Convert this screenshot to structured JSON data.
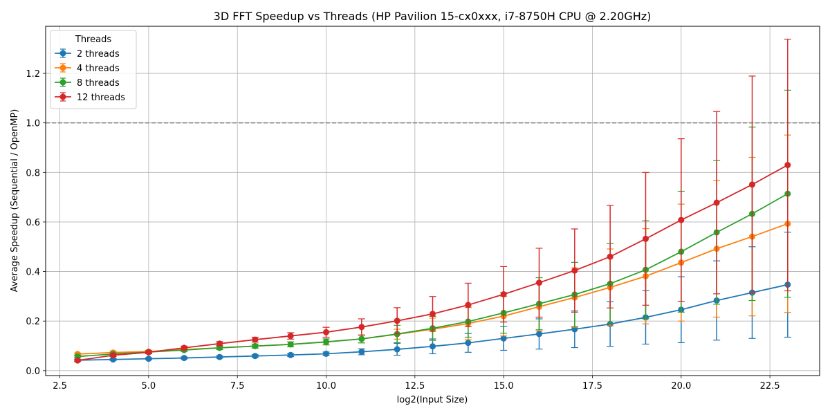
{
  "chart_data": {
    "type": "line",
    "title": "3D FFT Speedup vs Threads (HP Pavilion 15-cx0xxx, i7-8750H CPU @ 2.20GHz)",
    "xlabel": "log2(Input Size)",
    "ylabel": "Average Speedup (Sequential / OpenMP)",
    "xlim": [
      2.1,
      23.9
    ],
    "ylim": [
      -0.02,
      1.39
    ],
    "xticks": [
      2.5,
      5.0,
      7.5,
      10.0,
      12.5,
      15.0,
      17.5,
      20.0,
      22.5
    ],
    "xtick_labels": [
      "2.5",
      "5.0",
      "7.5",
      "10.0",
      "12.5",
      "15.0",
      "17.5",
      "20.0",
      "22.5"
    ],
    "yticks": [
      0.0,
      0.2,
      0.4,
      0.6,
      0.8,
      1.0,
      1.2
    ],
    "ytick_labels": [
      "0.0",
      "0.2",
      "0.4",
      "0.6",
      "0.8",
      "1.0",
      "1.2"
    ],
    "grid": true,
    "reference_line": {
      "y": 1.0,
      "style": "dashed",
      "color": "#808080"
    },
    "legend": {
      "title": "Threads",
      "placement": "top-left"
    },
    "x": [
      3,
      4,
      5,
      6,
      7,
      8,
      9,
      10,
      11,
      12,
      13,
      14,
      15,
      16,
      17,
      18,
      19,
      20,
      21,
      22,
      23
    ],
    "series": [
      {
        "name": "2 threads",
        "color": "#1f77b4",
        "values": [
          0.042,
          0.045,
          0.048,
          0.051,
          0.055,
          0.059,
          0.063,
          0.068,
          0.076,
          0.086,
          0.098,
          0.112,
          0.13,
          0.148,
          0.167,
          0.188,
          0.215,
          0.246,
          0.283,
          0.315,
          0.347
        ],
        "errors": [
          0.004,
          0.004,
          0.004,
          0.004,
          0.005,
          0.005,
          0.006,
          0.007,
          0.012,
          0.024,
          0.03,
          0.038,
          0.048,
          0.061,
          0.074,
          0.09,
          0.108,
          0.133,
          0.16,
          0.185,
          0.212
        ]
      },
      {
        "name": "4 threads",
        "color": "#ff7f0e",
        "values": [
          0.067,
          0.073,
          0.077,
          0.085,
          0.092,
          0.099,
          0.106,
          0.116,
          0.128,
          0.147,
          0.167,
          0.19,
          0.22,
          0.258,
          0.295,
          0.336,
          0.381,
          0.436,
          0.492,
          0.541,
          0.593
        ],
        "errors": [
          0.004,
          0.005,
          0.005,
          0.006,
          0.007,
          0.008,
          0.01,
          0.012,
          0.016,
          0.02,
          0.045,
          0.065,
          0.08,
          0.098,
          0.12,
          0.155,
          0.192,
          0.236,
          0.276,
          0.32,
          0.358
        ]
      },
      {
        "name": "8 threads",
        "color": "#2ca02c",
        "values": [
          0.057,
          0.067,
          0.075,
          0.083,
          0.092,
          0.099,
          0.106,
          0.116,
          0.128,
          0.148,
          0.171,
          0.198,
          0.233,
          0.27,
          0.307,
          0.351,
          0.407,
          0.48,
          0.558,
          0.633,
          0.714
        ],
        "errors": [
          0.004,
          0.005,
          0.005,
          0.006,
          0.007,
          0.008,
          0.01,
          0.012,
          0.016,
          0.035,
          0.048,
          0.063,
          0.082,
          0.105,
          0.13,
          0.162,
          0.198,
          0.244,
          0.29,
          0.35,
          0.418
        ]
      },
      {
        "name": "12 threads",
        "color": "#d62728",
        "values": [
          0.041,
          0.062,
          0.074,
          0.092,
          0.109,
          0.125,
          0.14,
          0.155,
          0.176,
          0.201,
          0.229,
          0.265,
          0.308,
          0.355,
          0.404,
          0.46,
          0.532,
          0.608,
          0.678,
          0.751,
          0.83
        ],
        "errors": [
          0.004,
          0.005,
          0.006,
          0.007,
          0.008,
          0.01,
          0.013,
          0.02,
          0.033,
          0.053,
          0.07,
          0.088,
          0.112,
          0.139,
          0.168,
          0.207,
          0.268,
          0.328,
          0.368,
          0.438,
          0.508
        ]
      }
    ]
  }
}
